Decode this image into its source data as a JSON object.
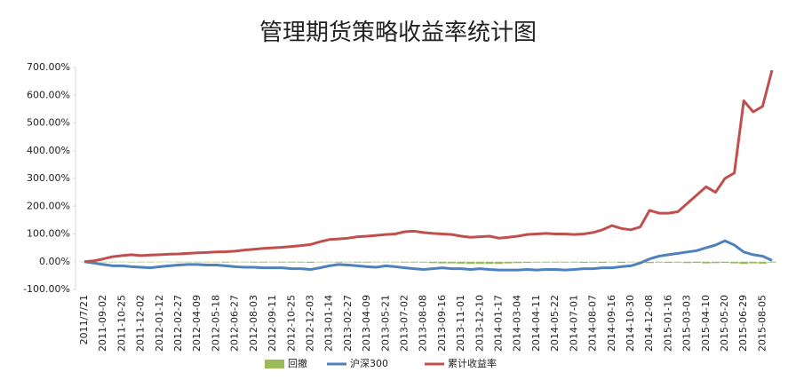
{
  "chart_data": {
    "type": "line",
    "title": "管理期货策略收益率统计图",
    "categories": [
      "2011/7/21",
      null,
      "2011-09-02",
      null,
      "2011-10-25",
      null,
      "2011-12-02",
      null,
      "2012-01-12",
      null,
      "2012-02-27",
      null,
      "2012-04-09",
      null,
      "2012-05-18",
      null,
      "2012-06-27",
      null,
      "2012-08-03",
      null,
      "2012-09-11",
      null,
      "2012-10-25",
      null,
      "2012-12-03",
      null,
      "2013-01-14",
      null,
      "2013-02-27",
      null,
      "2013-04-09",
      null,
      "2013-05-21",
      null,
      "2013-07-02",
      null,
      "2013-08-08",
      null,
      "2013-09-16",
      null,
      "2013-11-01",
      null,
      "2013-12-10",
      null,
      "2014-01-17",
      null,
      "2014-03-04",
      null,
      "2014-04-11",
      null,
      "2014-05-22",
      null,
      "2014-07-01",
      null,
      "2014-08-07",
      null,
      "2014-09-16",
      null,
      "2014-10-30",
      null,
      "2014-12-08",
      null,
      "2015-01-16",
      null,
      "2015-03-03",
      null,
      "2015-04-10",
      null,
      "2015-05-20",
      null,
      "2015-06-29",
      null,
      "2015-08-05",
      null
    ],
    "series": [
      {
        "name": "回撤",
        "type": "bar",
        "color": "#9bbb59",
        "values": [
          0,
          -1,
          -2,
          -2,
          -1,
          -2,
          -2,
          -2,
          -1,
          -1,
          -2,
          -2,
          -2,
          -2,
          -2,
          -3,
          -2,
          -2,
          -3,
          -3,
          -2,
          -3,
          -3,
          -3,
          -4,
          -2,
          -2,
          -3,
          -2,
          -3,
          -3,
          -2,
          -2,
          -2,
          -3,
          -3,
          -3,
          -5,
          -6,
          -6,
          -7,
          -8,
          -8,
          -8,
          -8,
          -6,
          -5,
          -4,
          -3,
          -3,
          -3,
          -3,
          -3,
          -4,
          -3,
          -4,
          -2,
          -4,
          -2,
          -2,
          -5,
          -3,
          -4,
          -3,
          -5,
          -4,
          -6,
          -5,
          -4,
          -6,
          -8,
          -6,
          -7,
          -3
        ]
      },
      {
        "name": "沪深300",
        "color": "#4f81bd",
        "values": [
          0,
          -5,
          -10,
          -15,
          -15,
          -18,
          -20,
          -22,
          -18,
          -15,
          -12,
          -10,
          -10,
          -12,
          -12,
          -15,
          -18,
          -20,
          -20,
          -22,
          -22,
          -22,
          -25,
          -25,
          -28,
          -22,
          -15,
          -10,
          -12,
          -15,
          -18,
          -20,
          -15,
          -18,
          -22,
          -25,
          -28,
          -25,
          -22,
          -25,
          -25,
          -28,
          -25,
          -28,
          -30,
          -30,
          -30,
          -28,
          -30,
          -28,
          -28,
          -30,
          -28,
          -25,
          -25,
          -22,
          -22,
          -18,
          -15,
          -5,
          10,
          20,
          25,
          30,
          35,
          40,
          50,
          60,
          75,
          60,
          35,
          25,
          20,
          5
        ]
      },
      {
        "name": "累计收益率",
        "color": "#c0504d",
        "values": [
          0,
          3,
          10,
          18,
          22,
          25,
          22,
          24,
          25,
          27,
          28,
          30,
          32,
          33,
          35,
          36,
          38,
          42,
          45,
          48,
          50,
          52,
          55,
          58,
          62,
          72,
          80,
          82,
          85,
          90,
          92,
          95,
          98,
          100,
          108,
          110,
          105,
          102,
          100,
          98,
          92,
          88,
          90,
          92,
          85,
          88,
          92,
          98,
          100,
          102,
          100,
          100,
          98,
          100,
          105,
          115,
          130,
          120,
          115,
          125,
          185,
          175,
          175,
          180,
          210,
          240,
          270,
          250,
          300,
          320,
          580,
          540,
          560,
          690
        ]
      }
    ],
    "ylim": [
      -100,
      700
    ],
    "yticks": [
      {
        "value": -100,
        "label": "-100.00%"
      },
      {
        "value": 0,
        "label": "0.00%"
      },
      {
        "value": 100,
        "label": "100.00%"
      },
      {
        "value": 200,
        "label": "200.00%"
      },
      {
        "value": 300,
        "label": "300.00%"
      },
      {
        "value": 400,
        "label": "400.00%"
      },
      {
        "value": 500,
        "label": "500.00%"
      },
      {
        "value": 600,
        "label": "600.00%"
      },
      {
        "value": 700,
        "label": "700.00%"
      }
    ],
    "grid": false,
    "legend": "bottom"
  }
}
